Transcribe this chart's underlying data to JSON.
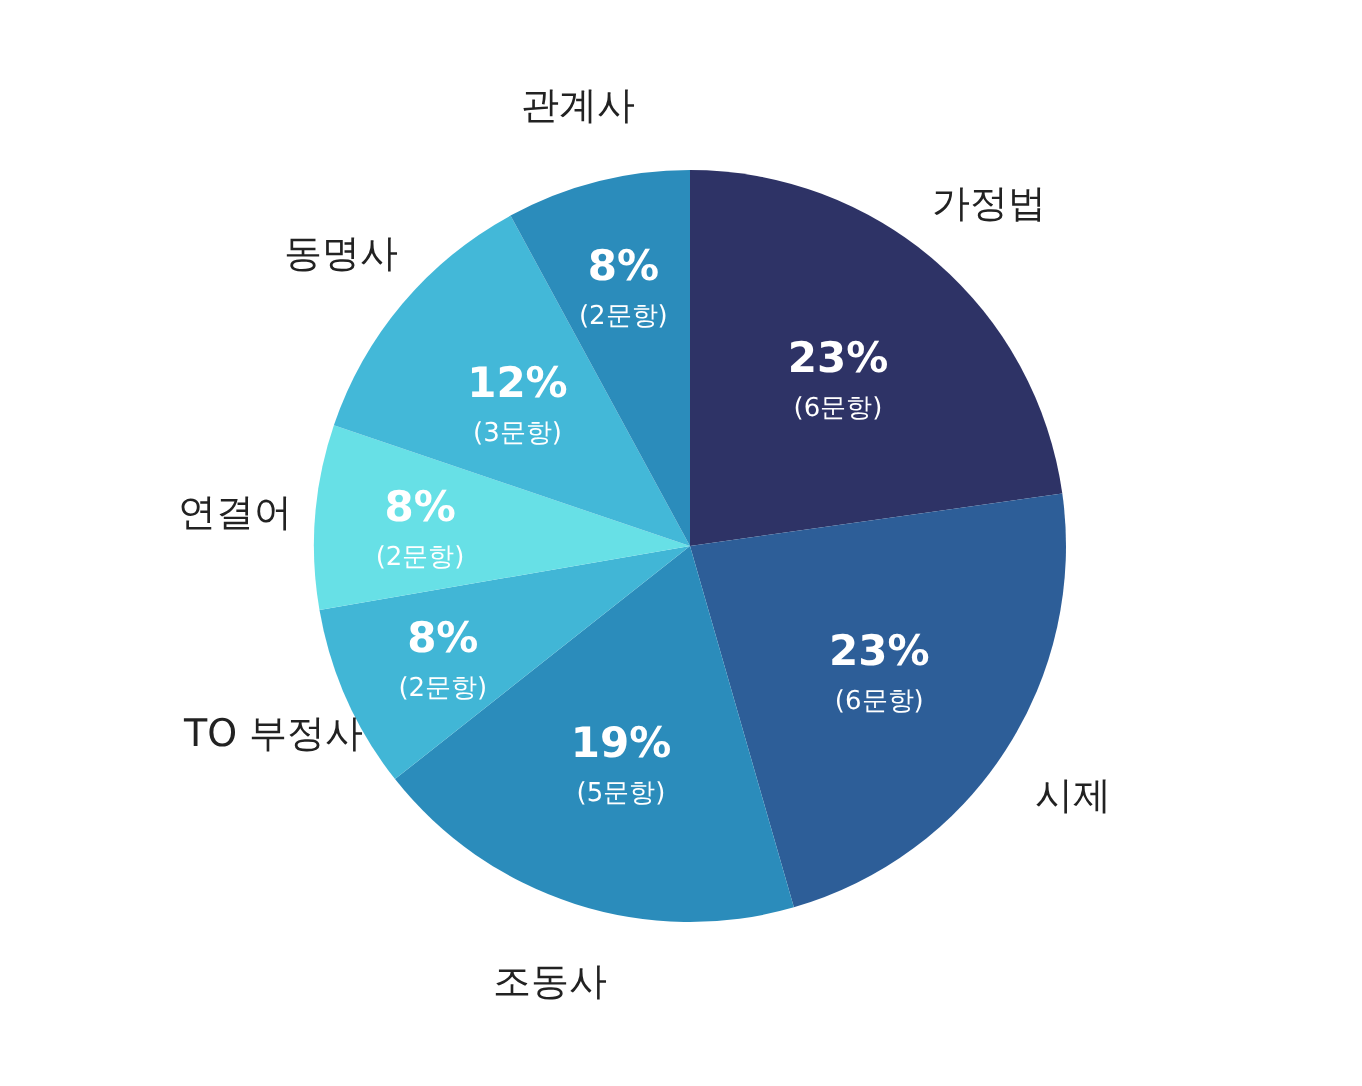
{
  "chart_data": {
    "type": "pie",
    "categories": [
      "가정법",
      "시제",
      "조동사",
      "TO 부정사",
      "연결어",
      "동명사",
      "관계사"
    ],
    "values": [
      23,
      23,
      19,
      8,
      8,
      12,
      8
    ],
    "colors": [
      "#2e3366",
      "#2d5e98",
      "#2b8cbb",
      "#41b6d6",
      "#67e0e6",
      "#43b8d8",
      "#2b8cbb"
    ],
    "value_labels": [
      "23%\n(6문항)",
      "23%\n(6문항)",
      "19%\n(5문항)",
      "8%\n(2문항)",
      "8%\n(2문항)",
      "12%\n(3문항)",
      "8%\n(2문항)"
    ],
    "legend": false
  }
}
